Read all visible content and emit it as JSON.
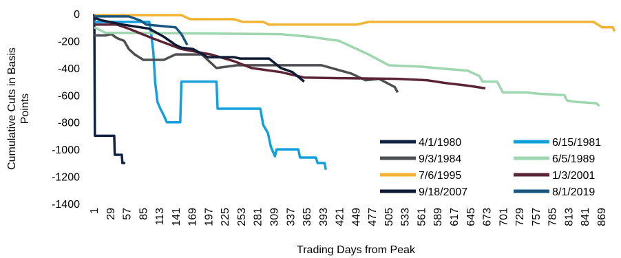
{
  "chart_data": {
    "type": "line",
    "title": "",
    "xlabel": "Trading Days from Peak",
    "ylabel": "Cumulative Cuts in Basis Points",
    "ylim": [
      -1400,
      0
    ],
    "yticks": [
      0,
      -200,
      -400,
      -600,
      -800,
      -1000,
      -1200,
      -1400
    ],
    "xlim": [
      1,
      895
    ],
    "xticks": [
      1,
      29,
      57,
      85,
      113,
      141,
      169,
      197,
      225,
      253,
      281,
      309,
      337,
      365,
      393,
      421,
      449,
      477,
      505,
      533,
      561,
      589,
      617,
      645,
      673,
      701,
      729,
      757,
      785,
      813,
      841,
      869
    ],
    "grid": false,
    "legend": {
      "position": "bottom-right",
      "columns": 2
    },
    "series": [
      {
        "name": "4/1/1980",
        "color": "#0f2241",
        "points": [
          [
            1,
            0
          ],
          [
            2,
            -900
          ],
          [
            35,
            -900
          ],
          [
            36,
            -1040
          ],
          [
            48,
            -1040
          ],
          [
            49,
            -1100
          ],
          [
            54,
            -1100
          ]
        ]
      },
      {
        "name": "6/15/1981",
        "color": "#139fdc",
        "points": [
          [
            1,
            -60
          ],
          [
            95,
            -60
          ],
          [
            98,
            -140
          ],
          [
            102,
            -280
          ],
          [
            105,
            -500
          ],
          [
            109,
            -650
          ],
          [
            114,
            -700
          ],
          [
            120,
            -750
          ],
          [
            125,
            -800
          ],
          [
            148,
            -800
          ],
          [
            150,
            -500
          ],
          [
            210,
            -500
          ],
          [
            212,
            -700
          ],
          [
            285,
            -700
          ],
          [
            290,
            -820
          ],
          [
            298,
            -880
          ],
          [
            303,
            -980
          ],
          [
            310,
            -1050
          ],
          [
            313,
            -1000
          ],
          [
            350,
            -1000
          ],
          [
            353,
            -1060
          ],
          [
            380,
            -1060
          ],
          [
            383,
            -1100
          ],
          [
            395,
            -1100
          ],
          [
            397,
            -1150
          ]
        ]
      },
      {
        "name": "9/3/1984",
        "color": "#4e4f51",
        "points": [
          [
            1,
            -160
          ],
          [
            20,
            -160
          ],
          [
            30,
            -150
          ],
          [
            40,
            -180
          ],
          [
            52,
            -200
          ],
          [
            60,
            -260
          ],
          [
            70,
            -300
          ],
          [
            85,
            -340
          ],
          [
            120,
            -340
          ],
          [
            140,
            -300
          ],
          [
            185,
            -300
          ],
          [
            210,
            -400
          ],
          [
            245,
            -380
          ],
          [
            300,
            -380
          ],
          [
            330,
            -380
          ],
          [
            390,
            -380
          ],
          [
            440,
            -440
          ],
          [
            465,
            -490
          ],
          [
            488,
            -480
          ],
          [
            515,
            -540
          ],
          [
            520,
            -580
          ]
        ]
      },
      {
        "name": "6/5/1989",
        "color": "#9ed6b0",
        "points": [
          [
            1,
            -100
          ],
          [
            20,
            -140
          ],
          [
            320,
            -150
          ],
          [
            370,
            -170
          ],
          [
            420,
            -200
          ],
          [
            445,
            -250
          ],
          [
            470,
            -300
          ],
          [
            505,
            -380
          ],
          [
            560,
            -390
          ],
          [
            585,
            -400
          ],
          [
            640,
            -420
          ],
          [
            660,
            -460
          ],
          [
            665,
            -500
          ],
          [
            690,
            -500
          ],
          [
            700,
            -580
          ],
          [
            740,
            -580
          ],
          [
            760,
            -590
          ],
          [
            805,
            -600
          ],
          [
            810,
            -640
          ],
          [
            825,
            -650
          ],
          [
            860,
            -660
          ],
          [
            865,
            -680
          ]
        ]
      },
      {
        "name": "7/6/1995",
        "color": "#f5b335",
        "points": [
          [
            1,
            -10
          ],
          [
            150,
            -10
          ],
          [
            165,
            -40
          ],
          [
            240,
            -40
          ],
          [
            255,
            -60
          ],
          [
            290,
            -60
          ],
          [
            300,
            -80
          ],
          [
            450,
            -80
          ],
          [
            470,
            -60
          ],
          [
            855,
            -60
          ],
          [
            870,
            -100
          ],
          [
            888,
            -100
          ],
          [
            891,
            -130
          ]
        ]
      },
      {
        "name": "1/3/2001",
        "color": "#5b2537",
        "points": [
          [
            1,
            -80
          ],
          [
            40,
            -80
          ],
          [
            60,
            -110
          ],
          [
            100,
            -180
          ],
          [
            150,
            -260
          ],
          [
            200,
            -300
          ],
          [
            240,
            -350
          ],
          [
            270,
            -400
          ],
          [
            320,
            -430
          ],
          [
            360,
            -470
          ],
          [
            420,
            -475
          ],
          [
            520,
            -480
          ],
          [
            570,
            -490
          ],
          [
            600,
            -510
          ],
          [
            640,
            -530
          ],
          [
            670,
            -550
          ]
        ]
      },
      {
        "name": "9/18/2007",
        "color": "#0e1a33",
        "points": [
          [
            1,
            -30
          ],
          [
            15,
            -50
          ],
          [
            50,
            -80
          ],
          [
            95,
            -110
          ],
          [
            120,
            -170
          ],
          [
            140,
            -230
          ],
          [
            150,
            -250
          ],
          [
            170,
            -260
          ],
          [
            195,
            -320
          ],
          [
            240,
            -320
          ],
          [
            250,
            -330
          ],
          [
            300,
            -330
          ],
          [
            320,
            -400
          ],
          [
            340,
            -430
          ],
          [
            360,
            -500
          ]
        ]
      },
      {
        "name": "8/1/2019",
        "color": "#1a5780",
        "points": [
          [
            1,
            -20
          ],
          [
            60,
            -20
          ],
          [
            80,
            -50
          ],
          [
            90,
            -80
          ],
          [
            140,
            -100
          ],
          [
            150,
            -150
          ],
          [
            160,
            -230
          ]
        ]
      }
    ]
  }
}
